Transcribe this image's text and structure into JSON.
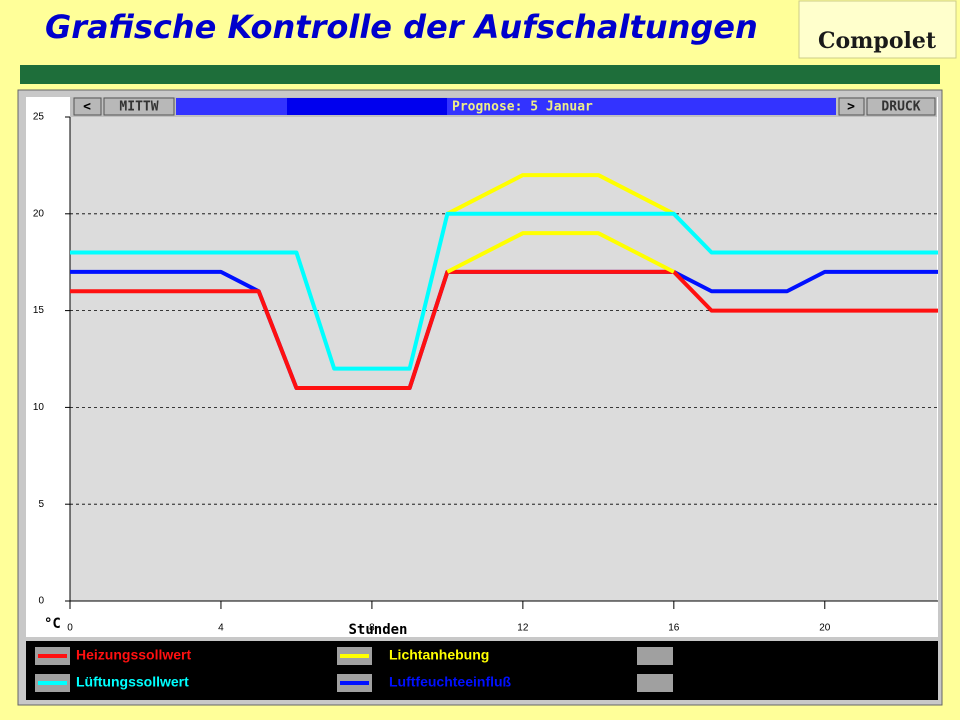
{
  "header": {
    "title": "Grafische Kontrolle der Aufschaltungen",
    "logo": "Compolet"
  },
  "toolbar": {
    "prev": "<",
    "day": "MITTW",
    "forecast": "Prognose: 5 Januar",
    "next": ">",
    "print": "DRUCK"
  },
  "chart_data": {
    "type": "line",
    "x_label": "Stunden",
    "y_label": "°C",
    "x": [
      0,
      1,
      2,
      3,
      4,
      5,
      6,
      7,
      8,
      9,
      10,
      11,
      12,
      13,
      14,
      15,
      16,
      17,
      18,
      19,
      20,
      21,
      22,
      23
    ],
    "xlim": [
      0,
      23
    ],
    "xticks": [
      0,
      4,
      8,
      12,
      16,
      20
    ],
    "ylim": [
      0,
      25
    ],
    "yticks": [
      0,
      5,
      10,
      15,
      20,
      25
    ],
    "grid": true,
    "series": [
      {
        "name": "Heizungssollwert",
        "color": "#ff1010",
        "values": [
          16,
          16,
          16,
          16,
          16,
          16,
          11,
          11,
          11,
          11,
          17,
          17,
          17,
          17,
          17,
          17,
          17,
          15,
          15,
          15,
          15,
          15,
          15,
          15
        ]
      },
      {
        "name": "Lüftungssollwert",
        "color": "#00ffff",
        "values": [
          18,
          18,
          18,
          18,
          18,
          18,
          18,
          12,
          12,
          12,
          20,
          20,
          20,
          20,
          20,
          20,
          20,
          18,
          18,
          18,
          18,
          18,
          18,
          18
        ]
      },
      {
        "name": "Lichtanhebung",
        "color": "#ffff00",
        "values": [
          null,
          null,
          null,
          null,
          null,
          null,
          null,
          null,
          null,
          null,
          20,
          21,
          22,
          22,
          22,
          21,
          20,
          null,
          null,
          null,
          null,
          null,
          null,
          null
        ]
      },
      {
        "color": "#ffff00",
        "values": [
          null,
          null,
          null,
          null,
          null,
          null,
          null,
          null,
          null,
          null,
          17,
          18,
          19,
          19,
          19,
          18,
          17,
          null,
          null,
          null,
          null,
          null,
          null,
          null
        ]
      },
      {
        "name": "Luftfeuchteeinfluß",
        "color": "#0010ff",
        "values": [
          17,
          17,
          17,
          17,
          17,
          16,
          11,
          11,
          11,
          11,
          17,
          17,
          17,
          17,
          17,
          17,
          17,
          16,
          16,
          16,
          17,
          17,
          17,
          17
        ]
      }
    ]
  }
}
